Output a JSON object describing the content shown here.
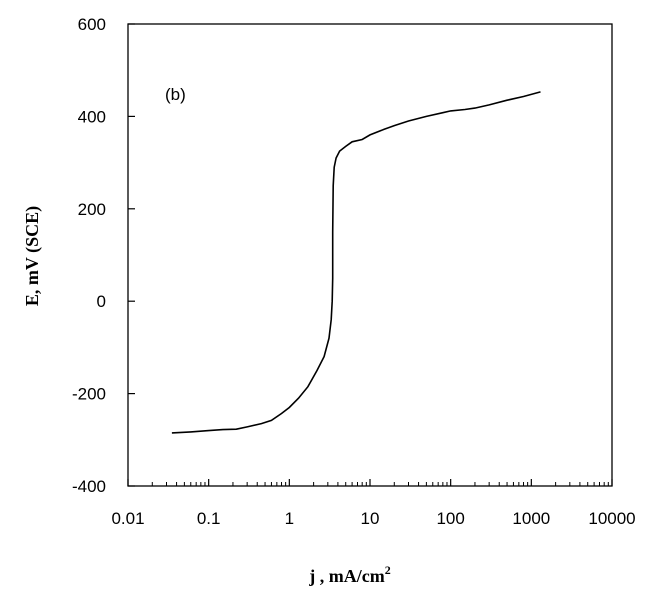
{
  "chart_data": {
    "type": "line",
    "panel_label": "(b)",
    "xlabel": "j , mA/cm",
    "xlabel_superscript": "2",
    "ylabel": "E, mV (SCE)",
    "xscale": "log",
    "xlim": [
      0.01,
      10000
    ],
    "ylim": [
      -400,
      600
    ],
    "xticks": [
      0.01,
      0.1,
      1,
      10,
      100,
      1000,
      10000
    ],
    "xtick_labels": [
      "0.01",
      "0.1",
      "1",
      "10",
      "100",
      "1000",
      "10000"
    ],
    "yticks": [
      -400,
      -200,
      0,
      200,
      400,
      600
    ],
    "ytick_labels": [
      "-400",
      "-200",
      "0",
      "200",
      "400",
      "600"
    ],
    "grid": false,
    "line_color": "#000000",
    "series": [
      {
        "x": [
          0.035,
          0.06,
          0.1,
          0.15,
          0.22,
          0.3,
          0.45,
          0.6,
          0.8,
          1.0,
          1.3,
          1.7,
          2.2,
          2.7,
          3.1,
          3.3,
          3.4,
          3.45,
          3.45,
          3.5,
          3.6,
          3.8,
          4.2,
          5.0,
          6.0,
          8.0,
          10,
          15,
          20,
          30,
          50,
          80,
          100,
          150,
          200,
          300,
          500,
          800,
          1300
        ],
        "y": [
          -285,
          -283,
          -280,
          -278,
          -277,
          -272,
          -265,
          -258,
          -243,
          -230,
          -210,
          -185,
          -150,
          -120,
          -80,
          -40,
          0,
          50,
          150,
          250,
          290,
          310,
          325,
          335,
          345,
          350,
          360,
          372,
          380,
          390,
          400,
          408,
          412,
          415,
          418,
          425,
          435,
          443,
          453
        ]
      }
    ]
  }
}
